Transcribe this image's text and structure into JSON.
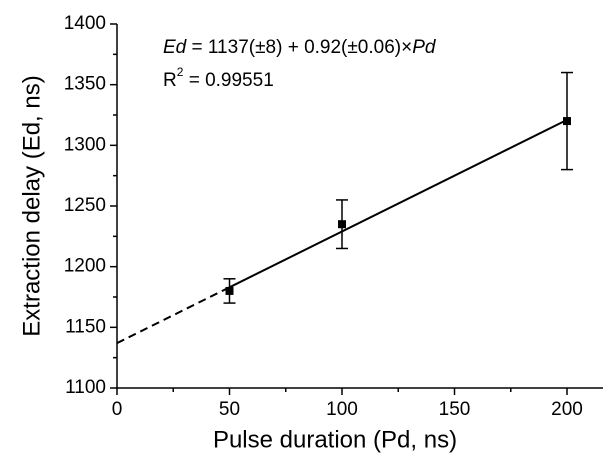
{
  "chart_data": {
    "type": "scatter",
    "x_label": "Pulse duration (Pd, ns)",
    "y_label": "Extraction delay (Ed, ns)",
    "annotation_equation": [
      "Ed",
      " = 1137(±8) + 0.92(±0.06)×",
      "Pd"
    ],
    "annotation_r2": [
      "R",
      "2",
      " = 0.99551"
    ],
    "x": [
      50,
      100,
      200
    ],
    "values": [
      1180,
      1235,
      1320
    ],
    "errors": [
      10,
      20,
      40
    ],
    "color": "#000000",
    "fit_lines": [
      {
        "style": "dashed",
        "x": [
          0,
          50
        ],
        "values": [
          1137,
          1183
        ]
      },
      {
        "style": "solid",
        "x": [
          50,
          200
        ],
        "values": [
          1183,
          1321
        ]
      }
    ],
    "xlim": [
      0,
      216
    ],
    "ylim": [
      1100,
      1400
    ],
    "xticks": [
      0,
      50,
      100,
      150,
      200
    ],
    "yticks": [
      1100,
      1150,
      1200,
      1250,
      1300,
      1350,
      1400
    ],
    "xminorticks": [
      25,
      75,
      125,
      175
    ],
    "yminorticks": [
      1125,
      1175,
      1225,
      1275,
      1325,
      1375
    ]
  }
}
